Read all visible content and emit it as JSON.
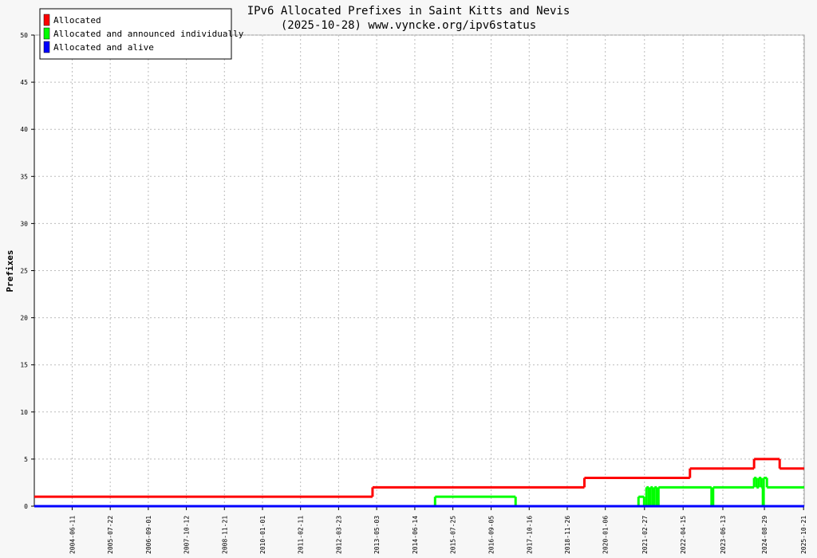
{
  "chart_data": {
    "type": "step",
    "title": "IPv6 Allocated Prefixes in Saint Kitts and Nevis",
    "subtitle": "(2025-10-28) www.vyncke.org/ipv6status",
    "y_label": "Prefixes",
    "xlim": [
      "2003-05-04",
      "2025-10-28"
    ],
    "xticks": [
      "2004-06-11",
      "2005-07-22",
      "2006-09-01",
      "2007-10-12",
      "2008-11-21",
      "2010-01-01",
      "2011-02-11",
      "2012-03-23",
      "2013-05-03",
      "2014-06-14",
      "2015-07-25",
      "2016-09-05",
      "2017-10-16",
      "2018-11-26",
      "2020-01-06",
      "2021-02-27",
      "2022-04-15",
      "2023-06-13",
      "2024-08-29",
      "2025-10-21"
    ],
    "ylim": [
      0,
      50
    ],
    "yticks": [
      0,
      5,
      10,
      15,
      20,
      25,
      30,
      35,
      40,
      45,
      50
    ],
    "grid": true,
    "legend": "top-left",
    "series": [
      {
        "name": "Allocated",
        "color": "#ff0000",
        "x": [
          "2003-05-04",
          "2013-03-20",
          "2019-05-28",
          "2022-06-27",
          "2024-05-11",
          "2025-02-08"
        ],
        "values": [
          1,
          2,
          3,
          4,
          5,
          4
        ]
      },
      {
        "name": "Allocated and announced individually",
        "color": "#00ff00",
        "x": [
          "2003-05-04",
          "2015-01-16",
          "2017-05-24",
          "2020-12-25",
          "2021-02-23",
          "2021-03-20",
          "2021-04-14",
          "2021-05-02",
          "2021-05-27",
          "2021-06-13",
          "2021-07-09",
          "2021-07-26",
          "2023-02-12",
          "2023-03-01",
          "2024-05-11",
          "2024-06-06",
          "2024-07-01",
          "2024-07-27",
          "2024-08-13",
          "2024-08-21",
          "2024-09-25"
        ],
        "values": [
          0,
          1,
          0,
          1,
          0,
          2,
          0,
          2,
          0,
          2,
          0,
          2,
          0,
          2,
          3,
          2,
          3,
          2,
          0,
          3,
          2
        ]
      },
      {
        "name": "Allocated and alive",
        "color": "#0000ff",
        "x": [
          "2003-05-04"
        ],
        "values": [
          0
        ]
      }
    ]
  }
}
